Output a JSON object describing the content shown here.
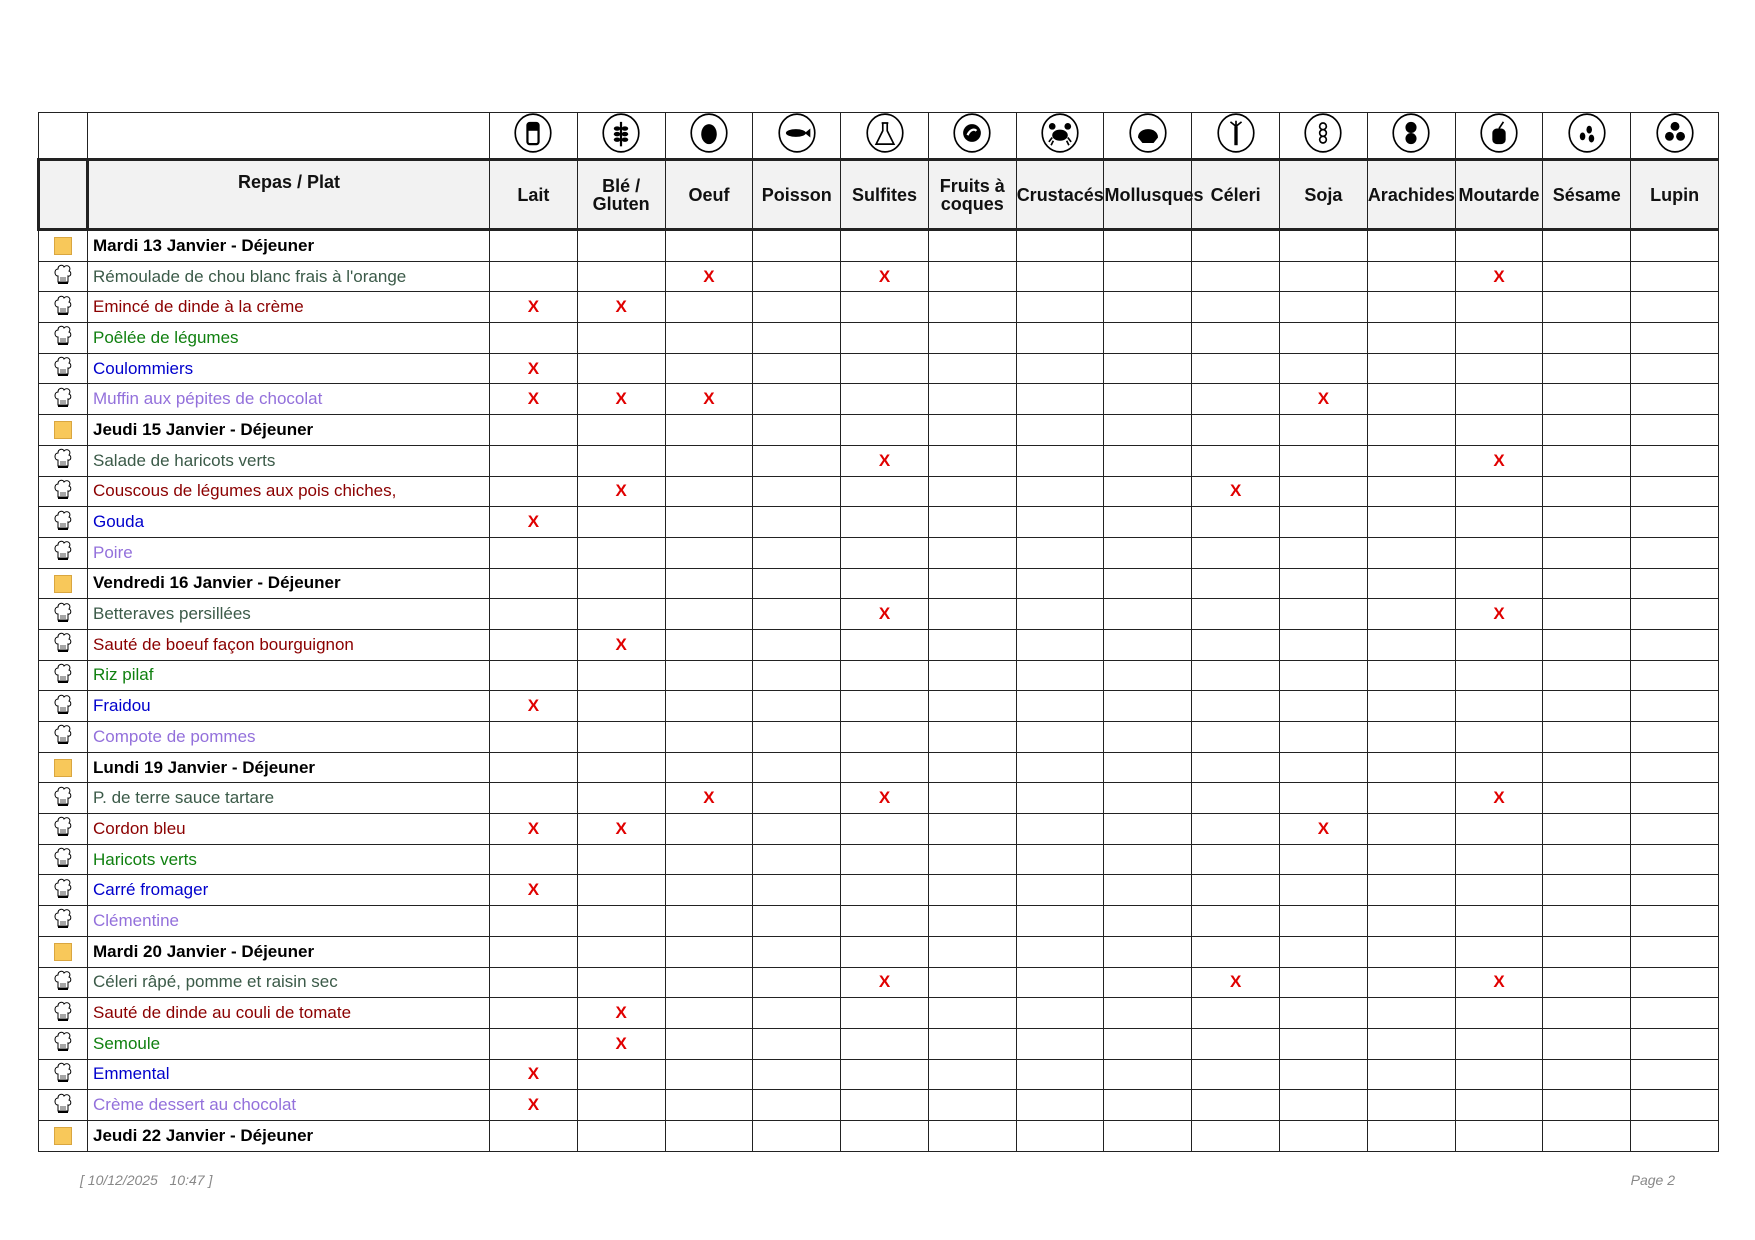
{
  "header": {
    "name_column": "Repas / Plat",
    "allergens": [
      {
        "label": "Lait",
        "icon": "milk-icon"
      },
      {
        "label": "Blé / Gluten",
        "icon": "wheat-icon"
      },
      {
        "label": "Oeuf",
        "icon": "egg-icon"
      },
      {
        "label": "Poisson",
        "icon": "fish-icon"
      },
      {
        "label": "Sulfites",
        "icon": "flask-icon"
      },
      {
        "label": "Fruits à coques",
        "icon": "nut-icon"
      },
      {
        "label": "Crustacés",
        "icon": "crab-icon"
      },
      {
        "label": "Mollusques",
        "icon": "shell-icon"
      },
      {
        "label": "Céleri",
        "icon": "celery-icon"
      },
      {
        "label": "Soja",
        "icon": "soy-icon"
      },
      {
        "label": "Arachides",
        "icon": "peanut-icon"
      },
      {
        "label": "Moutarde",
        "icon": "mustard-icon"
      },
      {
        "label": "Sésame",
        "icon": "sesame-icon"
      },
      {
        "label": "Lupin",
        "icon": "lupin-icon"
      }
    ]
  },
  "colors": {
    "starter": "#3b5a48",
    "main": "#8b0000",
    "side": "#108010",
    "cheese": "#0000cc",
    "dessert": "#9370db",
    "mark": "#e00000",
    "day_marker": "#f8c85a"
  },
  "rows": [
    {
      "kind": "day",
      "label": "Mardi 13 Janvier - Déjeuner",
      "marks": []
    },
    {
      "kind": "starter",
      "label": "Rémoulade de chou blanc frais à l'orange",
      "marks": [
        2,
        4,
        11
      ]
    },
    {
      "kind": "main",
      "label": "Emincé de dinde à la crème",
      "marks": [
        0,
        1
      ]
    },
    {
      "kind": "side",
      "label": "Poêlée de légumes",
      "marks": []
    },
    {
      "kind": "cheese",
      "label": "Coulommiers",
      "marks": [
        0
      ]
    },
    {
      "kind": "dessert",
      "label": "Muffin aux pépites de chocolat",
      "marks": [
        0,
        1,
        2,
        9
      ]
    },
    {
      "kind": "day",
      "label": "Jeudi 15 Janvier - Déjeuner",
      "marks": []
    },
    {
      "kind": "starter",
      "label": "Salade de haricots verts",
      "marks": [
        4,
        11
      ]
    },
    {
      "kind": "main",
      "label": "Couscous de légumes aux pois chiches,",
      "marks": [
        1,
        8
      ]
    },
    {
      "kind": "cheese",
      "label": "Gouda",
      "marks": [
        0
      ]
    },
    {
      "kind": "dessert",
      "label": "Poire",
      "marks": []
    },
    {
      "kind": "day",
      "label": "Vendredi 16 Janvier - Déjeuner",
      "marks": []
    },
    {
      "kind": "starter",
      "label": "Betteraves persillées",
      "marks": [
        4,
        11
      ]
    },
    {
      "kind": "main",
      "label": "Sauté de boeuf façon bourguignon",
      "marks": [
        1
      ]
    },
    {
      "kind": "side",
      "label": "Riz pilaf",
      "marks": []
    },
    {
      "kind": "cheese",
      "label": "Fraidou",
      "marks": [
        0
      ]
    },
    {
      "kind": "dessert",
      "label": "Compote de pommes",
      "marks": []
    },
    {
      "kind": "day",
      "label": "Lundi 19 Janvier - Déjeuner",
      "marks": []
    },
    {
      "kind": "starter",
      "label": "P. de terre sauce tartare",
      "marks": [
        2,
        4,
        11
      ]
    },
    {
      "kind": "main",
      "label": "Cordon bleu",
      "marks": [
        0,
        1,
        9
      ]
    },
    {
      "kind": "side",
      "label": "Haricots verts",
      "marks": []
    },
    {
      "kind": "cheese",
      "label": "Carré fromager",
      "marks": [
        0
      ]
    },
    {
      "kind": "dessert",
      "label": "Clémentine",
      "marks": []
    },
    {
      "kind": "day",
      "label": "Mardi 20 Janvier - Déjeuner",
      "marks": []
    },
    {
      "kind": "starter",
      "label": "Céleri râpé, pomme et raisin sec",
      "marks": [
        4,
        8,
        11
      ]
    },
    {
      "kind": "main",
      "label": "Sauté de dinde au couli de tomate",
      "marks": [
        1
      ]
    },
    {
      "kind": "side",
      "label": "Semoule",
      "marks": [
        1
      ]
    },
    {
      "kind": "cheese",
      "label": "Emmental",
      "marks": [
        0
      ]
    },
    {
      "kind": "dessert",
      "label": "Crème dessert au chocolat",
      "marks": [
        0
      ]
    },
    {
      "kind": "day",
      "label": "Jeudi 22 Janvier - Déjeuner",
      "marks": []
    }
  ],
  "mark_symbol": "X",
  "footer": {
    "timestamp": "[ 10/12/2025   10:47 ]",
    "page": "Page 2"
  }
}
